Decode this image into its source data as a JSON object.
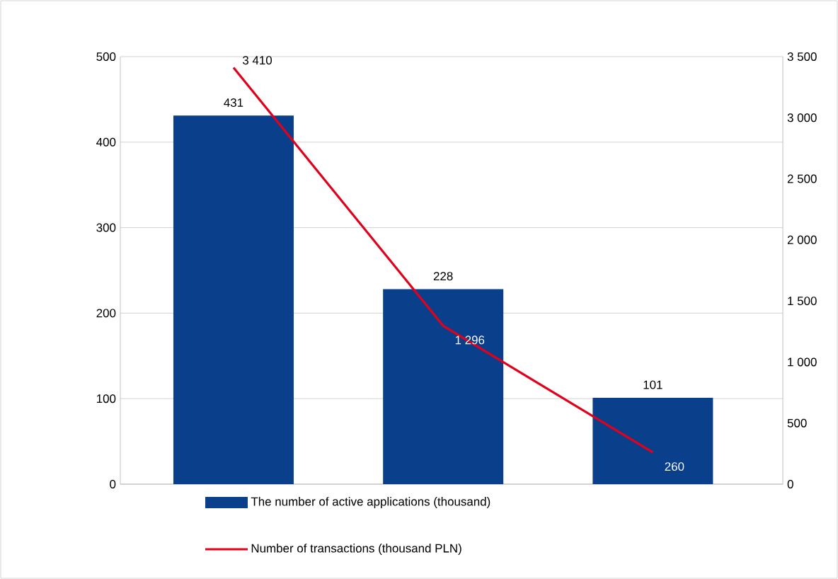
{
  "chart_data": {
    "type": "bar",
    "categories": [
      null,
      null,
      null
    ],
    "series": [
      {
        "name": "The number of active applications (thousand)",
        "color": "#0a3f8c",
        "values": [
          431,
          228,
          101
        ],
        "value_labels": [
          "431",
          "228",
          "101"
        ]
      },
      {
        "name": "Number of transactions (thousand PLN)",
        "type": "line",
        "axis": "y2",
        "color": "#e3001b",
        "values": [
          3410,
          1296,
          260
        ],
        "value_labels": [
          "3 410",
          "1 296",
          "260"
        ]
      }
    ],
    "ylim": [
      0,
      500
    ],
    "yticks": [
      0,
      100,
      200,
      300,
      400,
      500
    ],
    "y2lim": [
      0,
      3500
    ],
    "y2ticks": [
      0,
      500,
      {
        "value": 1000,
        "label": "1 000"
      },
      {
        "value": 1500,
        "label": "1 500"
      },
      {
        "value": 2000,
        "label": "2 000"
      },
      {
        "value": 2500,
        "label": "2 500"
      },
      {
        "value": 3000,
        "label": "3 000"
      },
      {
        "value": 3500,
        "label": "3 500"
      }
    ],
    "grid": "y",
    "legend": "bottom"
  }
}
